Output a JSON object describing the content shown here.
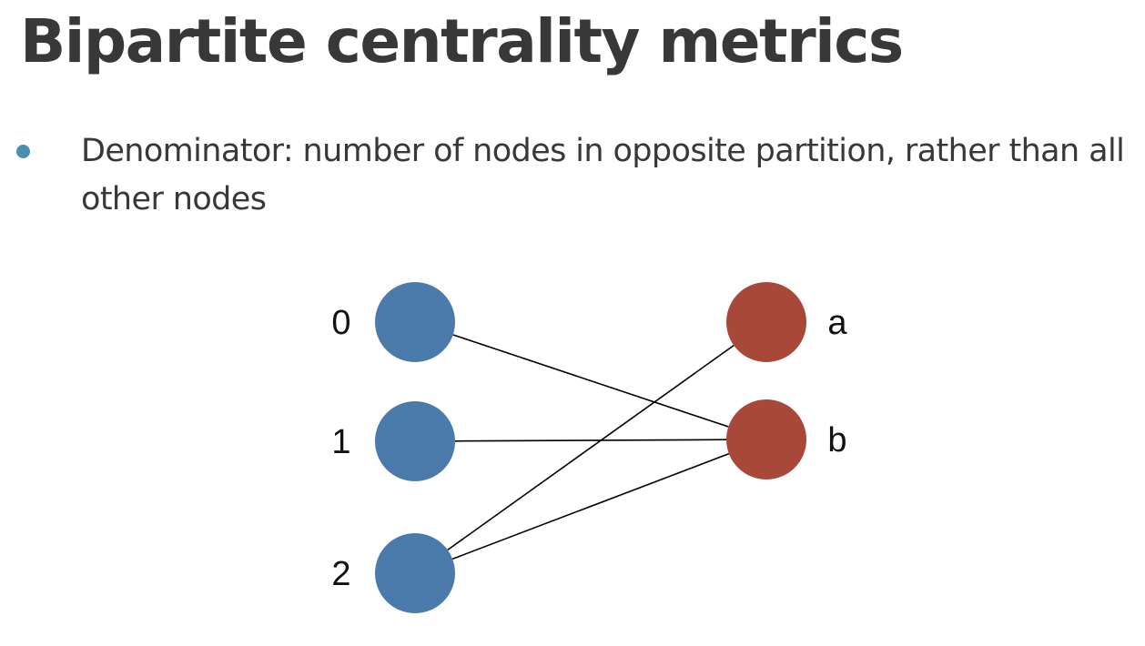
{
  "slide": {
    "title": "Bipartite centrality metrics",
    "bullets": [
      {
        "text": "Denominator: number of nodes in opposite partition, rather than all other nodes"
      }
    ]
  },
  "colors": {
    "title_text": "#383838",
    "body_text": "#383838",
    "bullet": "#4a8fb0",
    "left_partition": "#4a7bab",
    "right_partition": "#a84838",
    "edge": "#000000"
  },
  "diagram": {
    "left_nodes": [
      {
        "id": "0",
        "label": "0"
      },
      {
        "id": "1",
        "label": "1"
      },
      {
        "id": "2",
        "label": "2"
      }
    ],
    "right_nodes": [
      {
        "id": "a",
        "label": "a"
      },
      {
        "id": "b",
        "label": "b"
      }
    ],
    "edges": [
      [
        "0",
        "b"
      ],
      [
        "1",
        "b"
      ],
      [
        "2",
        "a"
      ],
      [
        "2",
        "b"
      ]
    ]
  }
}
